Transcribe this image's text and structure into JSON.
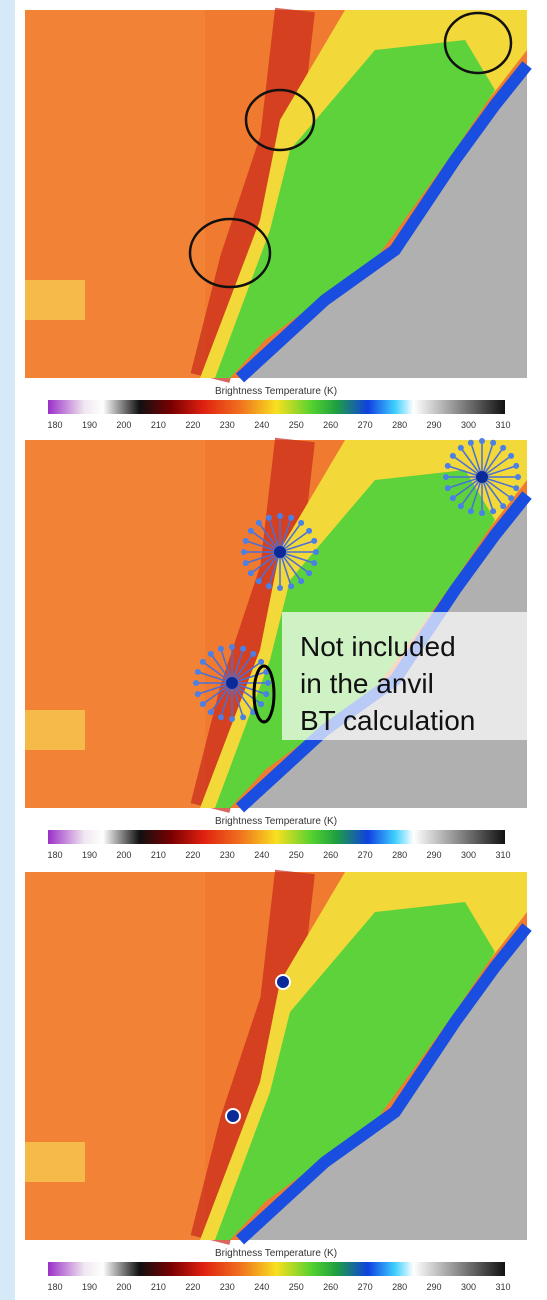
{
  "panels": [
    {
      "colorbar_label": "Brightness Temperature (K)"
    },
    {
      "colorbar_label": "Brightness Temperature (K)"
    },
    {
      "colorbar_label": "Brightness Temperature (K)"
    }
  ],
  "colorbar_ticks": [
    180,
    190,
    200,
    210,
    220,
    230,
    240,
    250,
    260,
    270,
    280,
    290,
    300,
    310
  ],
  "annotation": {
    "lines": [
      "Not included",
      "in the anvil",
      "BT calculation"
    ]
  }
}
